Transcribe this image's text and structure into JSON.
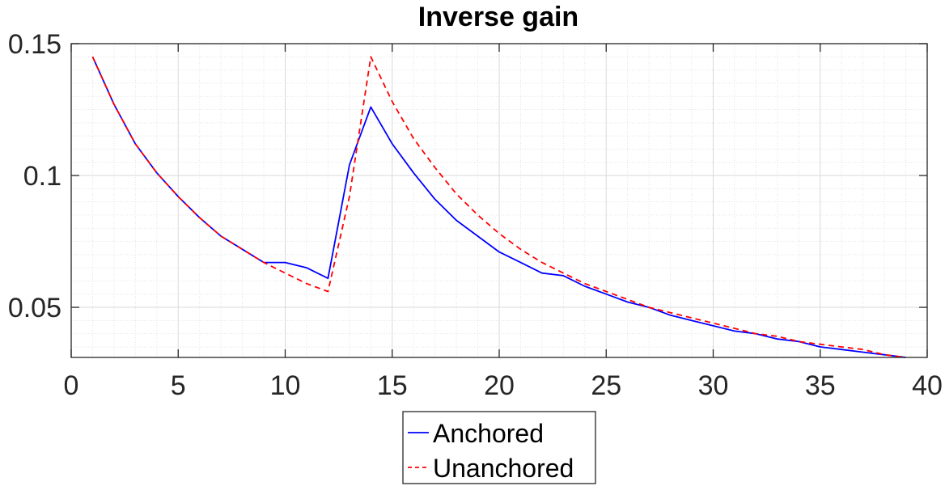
{
  "chart_data": {
    "type": "line",
    "title": "Inverse gain",
    "xlabel": "",
    "ylabel": "",
    "xlim": [
      0,
      40
    ],
    "ylim": [
      0.031,
      0.15
    ],
    "x_ticks": [
      0,
      5,
      10,
      15,
      20,
      25,
      30,
      35,
      40
    ],
    "x_tick_labels": [
      "0",
      "5",
      "10",
      "15",
      "20",
      "25",
      "30",
      "35",
      "40"
    ],
    "y_ticks": [
      0.05,
      0.1,
      0.15
    ],
    "y_tick_labels": [
      "0.05",
      "0.1",
      "0.15"
    ],
    "grid": true,
    "minor_grid": true,
    "legend_position": "bottom-outside",
    "x": [
      1,
      2,
      3,
      4,
      5,
      6,
      7,
      8,
      9,
      10,
      11,
      12,
      13,
      14,
      15,
      16,
      17,
      18,
      19,
      20,
      21,
      22,
      23,
      24,
      25,
      26,
      27,
      28,
      29,
      30,
      31,
      32,
      33,
      34,
      35,
      36,
      37,
      38,
      39
    ],
    "series": [
      {
        "name": "Anchored",
        "color": "#0000ff",
        "style": "solid",
        "values": [
          0.145,
          0.127,
          0.112,
          0.101,
          0.092,
          0.084,
          0.077,
          0.072,
          0.067,
          0.067,
          0.065,
          0.061,
          0.104,
          0.126,
          0.112,
          0.101,
          0.091,
          0.083,
          0.077,
          0.071,
          0.067,
          0.063,
          0.062,
          0.058,
          0.055,
          0.052,
          0.05,
          0.047,
          0.045,
          0.043,
          0.041,
          0.04,
          0.038,
          0.037,
          0.035,
          0.034,
          0.033,
          0.032,
          0.031
        ]
      },
      {
        "name": "Unanchored",
        "color": "#ff0000",
        "style": "dashed",
        "values": [
          0.145,
          0.127,
          0.112,
          0.101,
          0.092,
          0.084,
          0.077,
          0.072,
          0.067,
          0.063,
          0.059,
          0.056,
          0.092,
          0.145,
          0.128,
          0.114,
          0.103,
          0.093,
          0.085,
          0.078,
          0.072,
          0.067,
          0.063,
          0.059,
          0.056,
          0.053,
          0.05,
          0.048,
          0.046,
          0.044,
          0.042,
          0.04,
          0.039,
          0.037,
          0.036,
          0.035,
          0.034,
          0.032,
          0.031
        ]
      }
    ]
  }
}
